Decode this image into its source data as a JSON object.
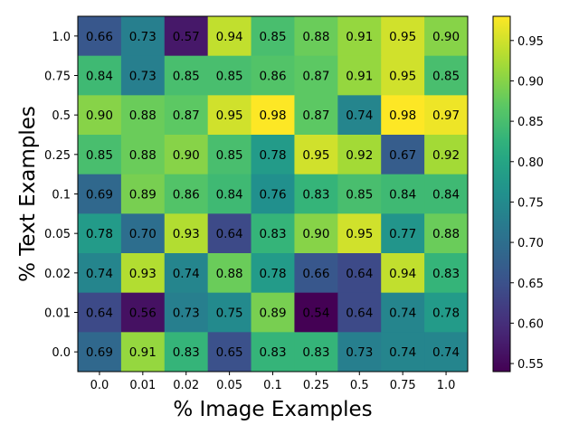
{
  "chart_data": {
    "type": "heatmap",
    "title": "",
    "xlabel": "% Image Examples",
    "ylabel": "% Text Examples",
    "x_categories": [
      "0.0",
      "0.01",
      "0.02",
      "0.05",
      "0.1",
      "0.25",
      "0.5",
      "0.75",
      "1.0"
    ],
    "y_categories": [
      "1.0",
      "0.75",
      "0.5",
      "0.25",
      "0.1",
      "0.05",
      "0.02",
      "0.01",
      "0.0"
    ],
    "values": [
      [
        0.66,
        0.73,
        0.57,
        0.94,
        0.85,
        0.88,
        0.91,
        0.95,
        0.9
      ],
      [
        0.84,
        0.73,
        0.85,
        0.85,
        0.86,
        0.87,
        0.91,
        0.95,
        0.85
      ],
      [
        0.9,
        0.88,
        0.87,
        0.95,
        0.98,
        0.87,
        0.74,
        0.98,
        0.97
      ],
      [
        0.85,
        0.88,
        0.9,
        0.85,
        0.78,
        0.95,
        0.92,
        0.67,
        0.92
      ],
      [
        0.69,
        0.89,
        0.86,
        0.84,
        0.76,
        0.83,
        0.85,
        0.84,
        0.84
      ],
      [
        0.78,
        0.7,
        0.93,
        0.64,
        0.83,
        0.9,
        0.95,
        0.77,
        0.88
      ],
      [
        0.74,
        0.93,
        0.74,
        0.88,
        0.78,
        0.66,
        0.64,
        0.94,
        0.83
      ],
      [
        0.64,
        0.56,
        0.73,
        0.75,
        0.89,
        0.54,
        0.64,
        0.74,
        0.78
      ],
      [
        0.69,
        0.91,
        0.83,
        0.65,
        0.83,
        0.83,
        0.73,
        0.74,
        0.74
      ]
    ],
    "colormap": "viridis",
    "color_range": [
      0.54,
      0.98
    ],
    "colorbar_ticks": [
      "0.55",
      "0.60",
      "0.65",
      "0.70",
      "0.75",
      "0.80",
      "0.85",
      "0.90",
      "0.95"
    ],
    "grid": false
  }
}
